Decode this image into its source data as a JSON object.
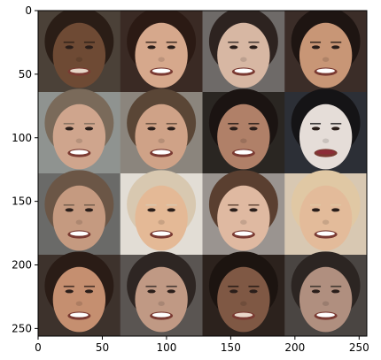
{
  "chart_data": {
    "type": "image-grid",
    "title": "",
    "xlabel": "",
    "ylabel": "",
    "xlim": [
      0,
      256
    ],
    "ylim": [
      256,
      0
    ],
    "x_ticks": [
      0,
      50,
      100,
      150,
      200,
      250
    ],
    "y_ticks": [
      0,
      50,
      100,
      150,
      200,
      250
    ],
    "grid": false,
    "rows": 4,
    "cols": 4,
    "tile_size": 64,
    "tiles": [
      {
        "bg": "#4b4138",
        "skin": "#6e4a34",
        "hair": "#2a1d16",
        "mouth": "#e6d6c8"
      },
      {
        "bg": "#3a2a24",
        "skin": "#d6a88c",
        "hair": "#2b1a14",
        "mouth": "#ffffff"
      },
      {
        "bg": "#6e6a68",
        "skin": "#d7b7a3",
        "hair": "#2d2320",
        "mouth": "#ffffff"
      },
      {
        "bg": "#3b2d28",
        "skin": "#c89676",
        "hair": "#1e1512",
        "mouth": "#ffffff"
      },
      {
        "bg": "#8f9390",
        "skin": "#cfa58d",
        "hair": "#7a6a5a",
        "mouth": "#ffffff"
      },
      {
        "bg": "#8b857d",
        "skin": "#cfa287",
        "hair": "#5a4636",
        "mouth": "#ffffff"
      },
      {
        "bg": "#2a2622",
        "skin": "#b08068",
        "hair": "#1b1412",
        "mouth": "#ffffff"
      },
      {
        "bg": "#2c2f36",
        "skin": "#e5ddd8",
        "hair": "#151416",
        "mouth": "#8c2c38"
      },
      {
        "bg": "#6a6a68",
        "skin": "#c59a80",
        "hair": "#6b5646",
        "mouth": "#ffffff"
      },
      {
        "bg": "#e2ddd5",
        "skin": "#e4b996",
        "hair": "#d8c8b0",
        "mouth": "#ffffff"
      },
      {
        "bg": "#9a9490",
        "skin": "#dfb9a1",
        "hair": "#5a3f30",
        "mouth": "#ffffff"
      },
      {
        "bg": "#d8c8b2",
        "skin": "#e3bb9a",
        "hair": "#e0c8a4",
        "mouth": "#ffffff"
      },
      {
        "bg": "#3d322c",
        "skin": "#c58f70",
        "hair": "#2a1c16",
        "mouth": "#ffffff"
      },
      {
        "bg": "#5a5552",
        "skin": "#c09984",
        "hair": "#2e2623",
        "mouth": "#ffffff"
      },
      {
        "bg": "#2c221d",
        "skin": "#7f5844",
        "hair": "#1c1410",
        "mouth": "#ead8cb"
      },
      {
        "bg": "#4a4542",
        "skin": "#b08f7f",
        "hair": "#2c2522",
        "mouth": "#ffffff"
      }
    ]
  }
}
